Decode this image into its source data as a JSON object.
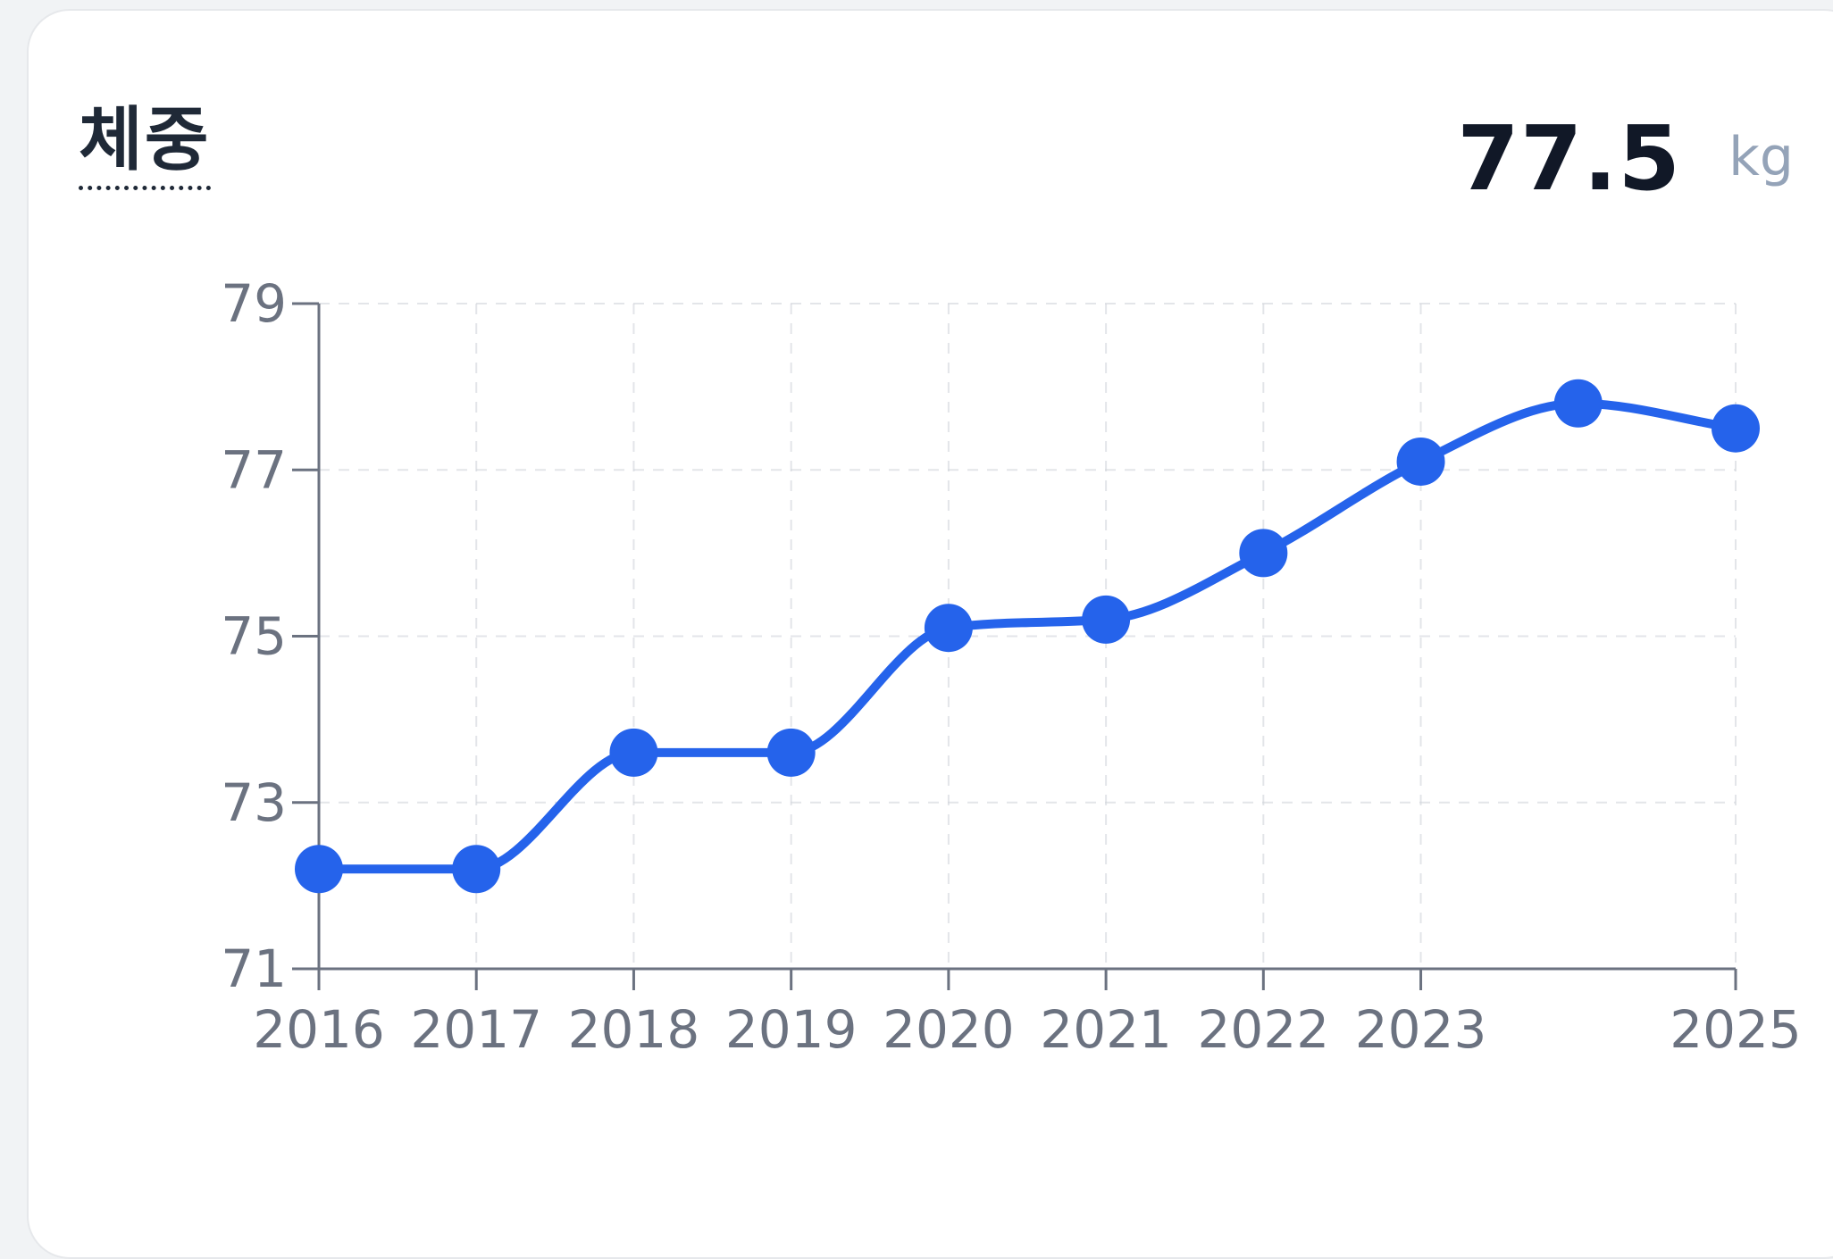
{
  "header": {
    "title": "체중",
    "value": "77.5",
    "unit": "kg"
  },
  "colors": {
    "line": "#2563eb",
    "axis": "#6b7280",
    "grid": "#d1d5db"
  },
  "chart_data": {
    "type": "line",
    "x": [
      2016,
      2017,
      2018,
      2019,
      2020,
      2021,
      2022,
      2023,
      2024,
      2025
    ],
    "x_tick_labels": [
      "2016",
      "2017",
      "2018",
      "2019",
      "2020",
      "2021",
      "2022",
      "2023",
      "2025"
    ],
    "x_tick_values": [
      2016,
      2017,
      2018,
      2019,
      2020,
      2021,
      2022,
      2023,
      2025
    ],
    "y_tick_values": [
      71,
      73,
      75,
      77,
      79
    ],
    "y_tick_labels": [
      "71",
      "73",
      "75",
      "77",
      "79"
    ],
    "series": [
      {
        "values": [
          72.2,
          72.2,
          73.6,
          73.6,
          75.1,
          75.2,
          76.0,
          77.1,
          77.8,
          77.5
        ]
      }
    ],
    "xlim": [
      2016,
      2025
    ],
    "ylim": [
      71,
      79
    ],
    "grid": true,
    "curve": "smooth"
  }
}
